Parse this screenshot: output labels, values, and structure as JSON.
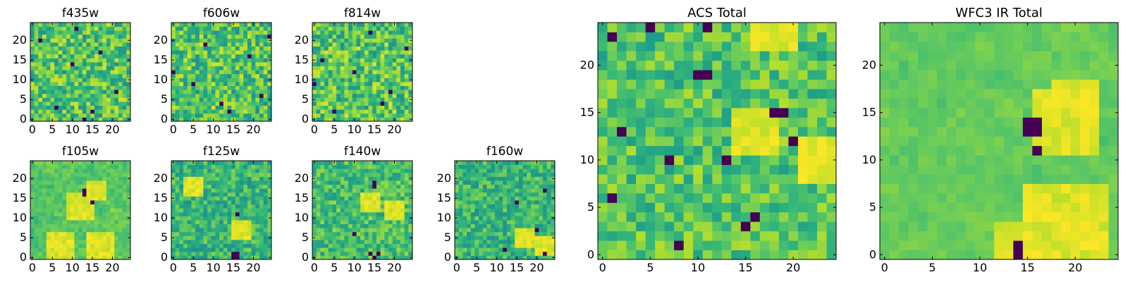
{
  "figure": {
    "description_free": true
  },
  "chart_data": [
    {
      "type": "heatmap",
      "title": "f435w",
      "xlabel": "",
      "ylabel": "",
      "xlim": [
        0,
        24
      ],
      "ylim": [
        0,
        24
      ],
      "xticks": [
        "0",
        "5",
        "10",
        "15",
        "20"
      ],
      "yticks": [
        "0",
        "5",
        "10",
        "15",
        "20"
      ],
      "grid": false,
      "colormap": "viridis",
      "pixels": 25,
      "texture_seed": 435,
      "mean_level": 0.72,
      "spread": 0.22,
      "dark_pixels": [
        [
          2,
          20
        ],
        [
          6,
          3
        ],
        [
          10,
          14
        ],
        [
          15,
          2
        ],
        [
          13,
          0
        ],
        [
          21,
          7
        ],
        [
          11,
          23
        ],
        [
          17,
          17
        ]
      ]
    },
    {
      "type": "heatmap",
      "title": "f606w",
      "xlabel": "",
      "ylabel": "",
      "xlim": [
        0,
        24
      ],
      "ylim": [
        0,
        24
      ],
      "xticks": [
        "0",
        "5",
        "10",
        "15",
        "20"
      ],
      "yticks": [
        "0",
        "5",
        "10",
        "15",
        "20"
      ],
      "grid": false,
      "colormap": "viridis",
      "pixels": 25,
      "texture_seed": 606,
      "mean_level": 0.72,
      "spread": 0.22,
      "dark_pixels": [
        [
          24,
          21
        ],
        [
          19,
          16
        ],
        [
          5,
          9
        ],
        [
          12,
          4
        ],
        [
          14,
          2
        ],
        [
          8,
          19
        ],
        [
          22,
          6
        ],
        [
          0,
          12
        ]
      ]
    },
    {
      "type": "heatmap",
      "title": "f814w",
      "xlabel": "",
      "ylabel": "",
      "xlim": [
        0,
        24
      ],
      "ylim": [
        0,
        24
      ],
      "xticks": [
        "0",
        "5",
        "10",
        "15",
        "20"
      ],
      "yticks": [
        "0",
        "5",
        "10",
        "15",
        "20"
      ],
      "grid": false,
      "colormap": "viridis",
      "pixels": 25,
      "texture_seed": 814,
      "mean_level": 0.73,
      "spread": 0.22,
      "dark_pixels": [
        [
          0,
          9
        ],
        [
          5,
          2
        ],
        [
          10,
          12
        ],
        [
          14,
          22
        ],
        [
          19,
          7
        ],
        [
          23,
          18
        ],
        [
          2,
          15
        ],
        [
          17,
          4
        ]
      ]
    },
    {
      "type": "heatmap",
      "title": "f105w",
      "xlabel": "",
      "ylabel": "",
      "xlim": [
        0,
        24
      ],
      "ylim": [
        0,
        24
      ],
      "xticks": [
        "0",
        "5",
        "10",
        "15",
        "20"
      ],
      "yticks": [
        "0",
        "5",
        "10",
        "15",
        "20"
      ],
      "grid": false,
      "colormap": "viridis",
      "pixels": 25,
      "texture_seed": 105,
      "mean_level": 0.74,
      "spread": 0.12,
      "dark_pixels": [
        [
          13,
          16
        ],
        [
          13,
          17
        ],
        [
          15,
          14
        ]
      ],
      "bright_patches": [
        [
          12,
          13,
          3
        ],
        [
          16,
          17,
          2
        ],
        [
          7,
          3,
          3
        ],
        [
          17,
          3,
          3
        ]
      ]
    },
    {
      "type": "heatmap",
      "title": "f125w",
      "xlabel": "",
      "ylabel": "",
      "xlim": [
        0,
        24
      ],
      "ylim": [
        0,
        24
      ],
      "xticks": [
        "0",
        "5",
        "10",
        "15",
        "20"
      ],
      "yticks": [
        "0",
        "5",
        "10",
        "15",
        "20"
      ],
      "grid": false,
      "colormap": "viridis",
      "pixels": 25,
      "texture_seed": 125,
      "mean_level": 0.66,
      "spread": 0.16,
      "dark_pixels": [
        [
          16,
          11
        ],
        [
          15,
          0
        ],
        [
          16,
          0
        ],
        [
          15,
          1
        ],
        [
          16,
          1
        ]
      ],
      "bright_patches": [
        [
          17,
          7,
          2
        ],
        [
          5,
          18,
          2
        ]
      ]
    },
    {
      "type": "heatmap",
      "title": "f140w",
      "xlabel": "",
      "ylabel": "",
      "xlim": [
        0,
        24
      ],
      "ylim": [
        0,
        24
      ],
      "xticks": [
        "0",
        "5",
        "10",
        "15",
        "20"
      ],
      "yticks": [
        "0",
        "5",
        "10",
        "15",
        "20"
      ],
      "grid": false,
      "colormap": "viridis",
      "pixels": 25,
      "texture_seed": 140,
      "mean_level": 0.7,
      "spread": 0.16,
      "dark_pixels": [
        [
          15,
          19
        ],
        [
          15,
          18
        ],
        [
          10,
          6
        ],
        [
          15,
          0
        ],
        [
          16,
          1
        ],
        [
          14,
          1
        ]
      ],
      "bright_patches": [
        [
          14,
          14,
          2
        ],
        [
          20,
          12,
          2
        ]
      ]
    },
    {
      "type": "heatmap",
      "title": "f160w",
      "xlabel": "",
      "ylabel": "",
      "xlim": [
        0,
        24
      ],
      "ylim": [
        0,
        24
      ],
      "xticks": [
        "0",
        "5",
        "10",
        "15",
        "20"
      ],
      "yticks": [
        "0",
        "5",
        "10",
        "15",
        "20"
      ],
      "grid": false,
      "colormap": "viridis",
      "pixels": 25,
      "texture_seed": 160,
      "mean_level": 0.66,
      "spread": 0.16,
      "dark_pixels": [
        [
          22,
          17
        ],
        [
          20,
          7
        ],
        [
          12,
          2
        ],
        [
          15,
          14
        ],
        [
          22,
          1
        ]
      ],
      "bright_patches": [
        [
          17,
          5,
          2
        ],
        [
          22,
          3,
          2
        ]
      ]
    },
    {
      "type": "heatmap",
      "title": "ACS Total",
      "xlabel": "",
      "ylabel": "",
      "xlim": [
        0,
        24
      ],
      "ylim": [
        0,
        24
      ],
      "xticks": [
        "0",
        "5",
        "10",
        "15",
        "20"
      ],
      "yticks": [
        "0",
        "5",
        "10",
        "15",
        "20"
      ],
      "grid": false,
      "colormap": "viridis",
      "pixels": 25,
      "texture_seed": 999,
      "mean_level": 0.72,
      "spread": 0.17,
      "dark_pixels": [
        [
          1,
          23
        ],
        [
          5,
          24
        ],
        [
          11,
          24
        ],
        [
          10,
          19
        ],
        [
          11,
          19
        ],
        [
          18,
          15
        ],
        [
          19,
          15
        ],
        [
          15,
          3
        ],
        [
          16,
          4
        ],
        [
          13,
          10
        ],
        [
          2,
          13
        ],
        [
          7,
          10
        ],
        [
          8,
          1
        ],
        [
          1,
          6
        ],
        [
          20,
          12
        ]
      ],
      "bright_patches": [
        [
          16,
          13,
          2
        ],
        [
          18,
          24,
          2
        ],
        [
          23,
          10,
          2
        ]
      ]
    },
    {
      "type": "heatmap",
      "title": "WFC3 IR Total",
      "xlabel": "",
      "ylabel": "",
      "xlim": [
        0,
        24
      ],
      "ylim": [
        0,
        24
      ],
      "xticks": [
        "0",
        "5",
        "10",
        "15",
        "20"
      ],
      "yticks": [
        "0",
        "5",
        "10",
        "15",
        "20"
      ],
      "grid": false,
      "colormap": "viridis",
      "pixels": 25,
      "texture_seed": 777,
      "mean_level": 0.76,
      "spread": 0.07,
      "dark_pixels": [
        [
          15,
          13
        ],
        [
          16,
          13
        ],
        [
          15,
          14
        ],
        [
          16,
          14
        ],
        [
          16,
          11
        ],
        [
          14,
          0
        ],
        [
          14,
          1
        ]
      ],
      "bright_patches": [
        [
          19,
          14,
          3
        ],
        [
          20,
          16,
          2
        ],
        [
          19,
          3,
          4
        ],
        [
          14,
          1,
          2
        ]
      ]
    }
  ]
}
